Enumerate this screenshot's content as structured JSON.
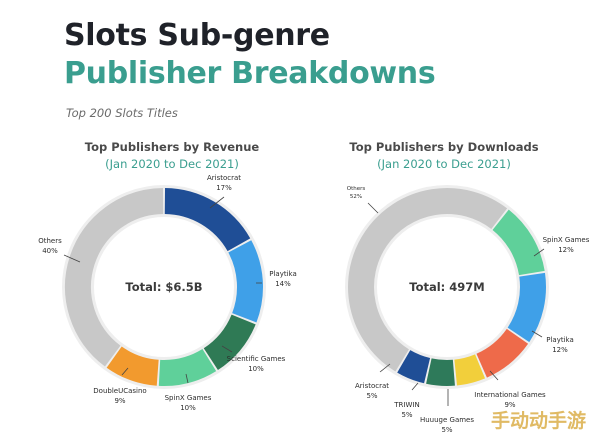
{
  "header": {
    "title_line1": "Slots Sub-genre",
    "title_line2": "Publisher Breakdowns",
    "subtitle": "Top 200 Slots Titles"
  },
  "colors": {
    "teal": "#3a9e8f",
    "dark_text": "#1f2229",
    "Aristocrat": "#1f4e96",
    "Playtika": "#3fa0e8",
    "Scientific Games": "#2f7a55",
    "SpinX Games": "#5fd09a",
    "DoubleUCasino": "#f29a2e",
    "Others": "#c8c8c8",
    "International Games": "#ee6a4a",
    "Huuuge Games": "#f2cf3b",
    "TRIWIN": "#2e7a5a"
  },
  "watermark": "手动动手游",
  "chart_data": [
    {
      "type": "pie",
      "title": "Top Publishers by Revenue",
      "subtitle": "(Jan 2020 to Dec 2021)",
      "center_label": "Total: $6.5B",
      "slices": [
        {
          "label": "Aristocrat",
          "value_label": "17%",
          "value": 17
        },
        {
          "label": "Playtika",
          "value_label": "14%",
          "value": 14
        },
        {
          "label": "Scientific Games",
          "value_label": "10%",
          "value": 10
        },
        {
          "label": "SpinX Games",
          "value_label": "10%",
          "value": 10
        },
        {
          "label": "DoubleUCasino",
          "value_label": "9%",
          "value": 9
        },
        {
          "label": "Others",
          "value_label": "40%",
          "value": 40
        }
      ]
    },
    {
      "type": "pie",
      "title": "Top Publishers by Downloads",
      "subtitle": "(Jan 2020 to Dec 2021)",
      "center_label": "Total: 497M",
      "slices": [
        {
          "label": "SpinX Games",
          "value_label": "12%",
          "value": 12
        },
        {
          "label": "Playtika",
          "value_label": "12%",
          "value": 12
        },
        {
          "label": "International Games",
          "value_label": "9%",
          "value": 9
        },
        {
          "label": "Huuuge Games",
          "value_label": "5%",
          "value": 5
        },
        {
          "label": "TRIWIN",
          "value_label": "5%",
          "value": 5
        },
        {
          "label": "Aristocrat",
          "value_label": "5%",
          "value": 5
        },
        {
          "label": "Others",
          "value_label": "52%",
          "value": 52
        }
      ]
    }
  ]
}
